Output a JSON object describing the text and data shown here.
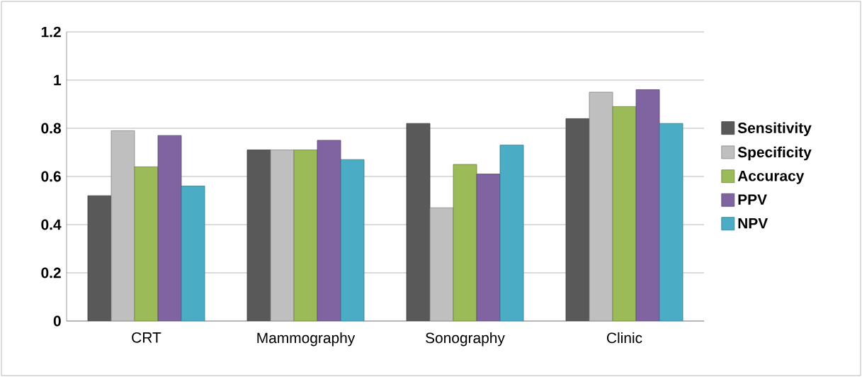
{
  "chart_data": {
    "type": "bar",
    "categories": [
      "CRT",
      "Mammography",
      "Sonography",
      "Clinic"
    ],
    "series": [
      {
        "name": "Sensitivity",
        "color": "#595959",
        "values": [
          0.52,
          0.71,
          0.82,
          0.84
        ]
      },
      {
        "name": "Specificity",
        "color": "#bfbfbf",
        "values": [
          0.79,
          0.71,
          0.47,
          0.95
        ]
      },
      {
        "name": "Accuracy",
        "color": "#9bbb59",
        "values": [
          0.64,
          0.71,
          0.65,
          0.89
        ]
      },
      {
        "name": "PPV",
        "color": "#8064a2",
        "values": [
          0.77,
          0.75,
          0.61,
          0.96
        ]
      },
      {
        "name": "NPV",
        "color": "#4bacc6",
        "values": [
          0.56,
          0.67,
          0.73,
          0.82
        ]
      }
    ],
    "ylim": [
      0,
      1.2
    ],
    "yticks": [
      0,
      0.2,
      0.4,
      0.6,
      0.8,
      1,
      1.2
    ],
    "grid": "y",
    "legend": "right"
  }
}
